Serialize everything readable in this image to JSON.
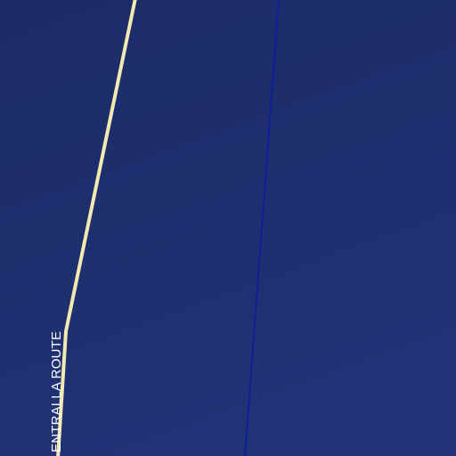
{
  "map": {
    "background_color": "#1f2f6e",
    "road": {
      "name": "ENTRALLA ROUTE",
      "color": "#f2eab0"
    },
    "boundary": {
      "color": "#0f1f9a"
    }
  }
}
